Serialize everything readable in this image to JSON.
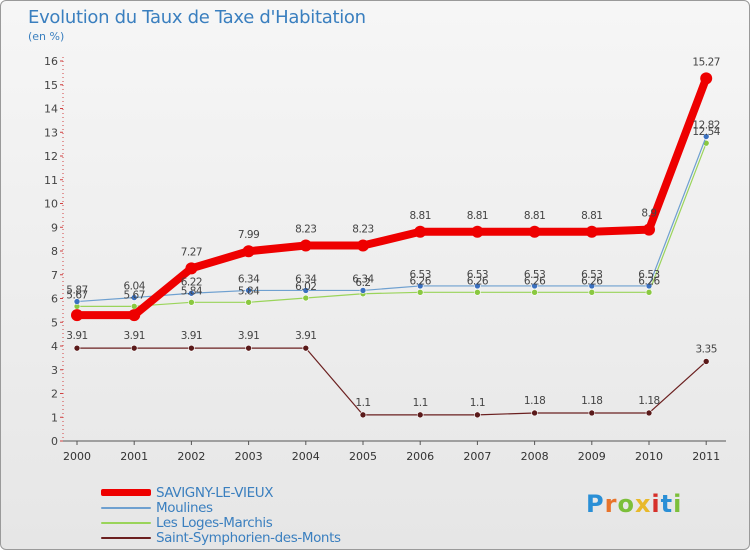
{
  "header": {
    "title": "Evolution du Taux de Taxe d'Habitation",
    "unit": "(en %)"
  },
  "brand": {
    "name": "Proxiti",
    "letters": [
      "P",
      "r",
      "o",
      "x",
      "i",
      "t",
      "i"
    ],
    "colors": [
      "#2a8fd6",
      "#e8732a",
      "#7cbf3a",
      "#e8b92a",
      "#d6302a",
      "#2a8fd6",
      "#7cbf3a"
    ]
  },
  "chart_data": {
    "type": "line",
    "title": "Evolution du Taux de Taxe d'Habitation",
    "ylabel": "(en %)",
    "xlabel": "",
    "ylim": [
      0,
      16
    ],
    "yticks": [
      0,
      1,
      2,
      3,
      4,
      5,
      6,
      7,
      8,
      9,
      10,
      11,
      12,
      13,
      14,
      15,
      16
    ],
    "grid": false,
    "legend_position": "bottom-left",
    "categories": [
      "2000",
      "2001",
      "2002",
      "2003",
      "2004",
      "2005",
      "2006",
      "2007",
      "2008",
      "2009",
      "2010",
      "2011"
    ],
    "series": [
      {
        "name": "SAVIGNY-LE-VIEUX",
        "color": "#ee0000",
        "values": [
          5.3,
          5.3,
          7.27,
          7.99,
          8.23,
          8.23,
          8.81,
          8.81,
          8.81,
          8.81,
          8.9,
          15.27
        ],
        "labels": [
          "",
          "",
          "7.27",
          "7.99",
          "8.23",
          "8.23",
          "8.81",
          "8.81",
          "8.81",
          "8.81",
          "8.9",
          "15.27"
        ]
      },
      {
        "name": "Moulines",
        "color": "#6ea0d0",
        "values": [
          5.87,
          6.04,
          6.22,
          6.34,
          6.34,
          6.34,
          6.53,
          6.53,
          6.53,
          6.53,
          6.53,
          12.82
        ],
        "labels": [
          "5.87",
          "6.04",
          "6.22",
          "6.34",
          "6.34",
          "6.34",
          "6.53",
          "6.53",
          "6.53",
          "6.53",
          "6.53",
          "12.82"
        ]
      },
      {
        "name": "Les Loges-Marchis",
        "color": "#9ad45a",
        "values": [
          5.67,
          5.67,
          5.84,
          5.84,
          6.02,
          6.2,
          6.26,
          6.26,
          6.26,
          6.26,
          6.26,
          12.54
        ],
        "labels": [
          "5.67",
          "5.67",
          "5.84",
          "5.84",
          "6.02",
          "6.2",
          "6.26",
          "6.26",
          "6.26",
          "6.26",
          "6.26",
          "12.54"
        ]
      },
      {
        "name": "Saint-Symphorien-des-Monts",
        "color": "#6b2020",
        "values": [
          3.91,
          3.91,
          3.91,
          3.91,
          3.91,
          1.1,
          1.1,
          1.1,
          1.18,
          1.18,
          1.18,
          3.35
        ],
        "labels": [
          "3.91",
          "3.91",
          "3.91",
          "3.91",
          "3.91",
          "1.1",
          "1.1",
          "1.1",
          "1.18",
          "1.18",
          "1.18",
          "3.35"
        ]
      }
    ]
  }
}
